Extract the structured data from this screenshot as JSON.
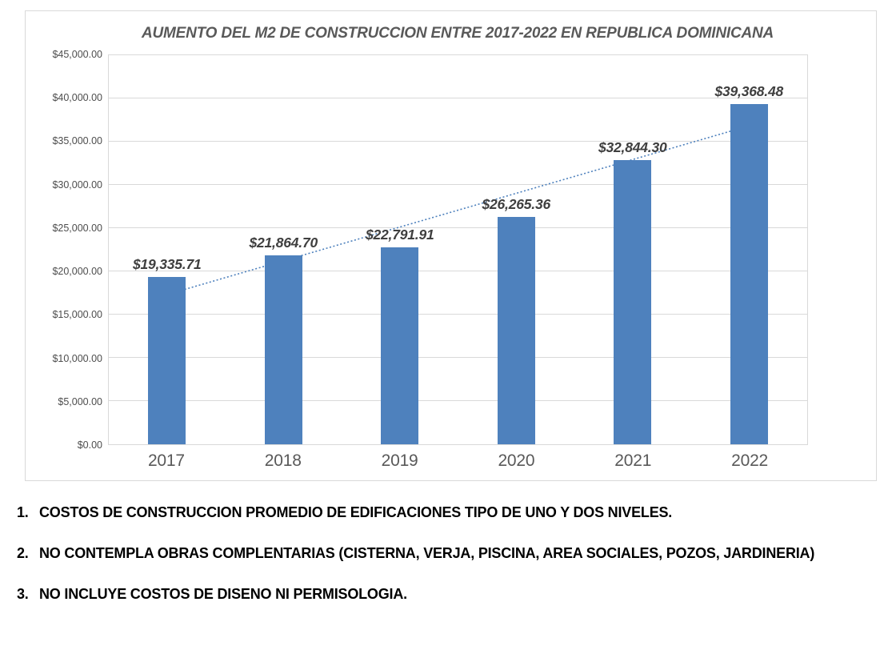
{
  "chart_data": {
    "type": "bar",
    "title": "AUMENTO DEL M2 DE CONSTRUCCION ENTRE 2017-2022 EN REPUBLICA DOMINICANA",
    "xlabel": "",
    "ylabel": "",
    "categories": [
      "2017",
      "2018",
      "2019",
      "2020",
      "2021",
      "2022"
    ],
    "values": [
      19335.71,
      21864.7,
      22791.91,
      26265.36,
      32844.3,
      39368.48
    ],
    "data_labels": [
      "$19,335.71",
      "$21,864.70",
      "$22,791.91",
      "$26,265.36",
      "$32,844.30",
      "$39,368.48"
    ],
    "ylim": [
      0,
      45000
    ],
    "ytick_values": [
      0,
      5000,
      10000,
      15000,
      20000,
      25000,
      30000,
      35000,
      40000,
      45000
    ],
    "ytick_labels": [
      "$0.00",
      "$5,000.00",
      "$10,000.00",
      "$15,000.00",
      "$20,000.00",
      "$25,000.00",
      "$30,000.00",
      "$35,000.00",
      "$40,000.00",
      "$45,000.00"
    ],
    "grid": true,
    "legend": "none",
    "bar_color": "#4E81BD",
    "grid_color": "#D9D9D9",
    "title_color": "#595959",
    "data_label_color": "#3F3F3F",
    "axis_label_color": "#595959",
    "trendline": {
      "type": "linear",
      "style": "dotted",
      "color": "#4E81BD",
      "start_value": 17320,
      "end_value": 36835
    }
  },
  "notes": {
    "items": [
      {
        "num": "1.",
        "text": "COSTOS DE CONSTRUCCION PROMEDIO DE EDIFICACIONES TIPO DE UNO Y DOS NIVELES."
      },
      {
        "num": "2.",
        "text": "NO CONTEMPLA OBRAS COMPLENTARIAS (CISTERNA, VERJA, PISCINA, AREA SOCIALES, POZOS, JARDINERIA)"
      },
      {
        "num": "3.",
        "text": "NO INCLUYE COSTOS DE DISENO NI PERMISOLOGIA."
      }
    ]
  }
}
